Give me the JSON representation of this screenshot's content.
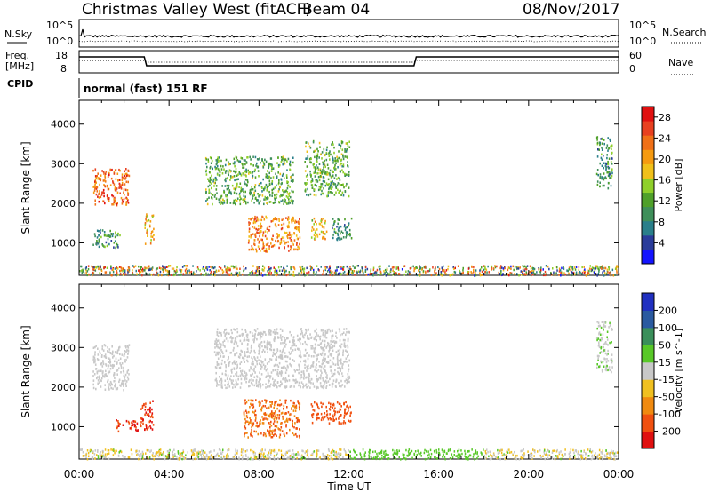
{
  "header": {
    "station": "Christmas Valley West (fitACF)",
    "beam": "Beam 04",
    "date": "08/Nov/2017"
  },
  "labels": {
    "nsky": "N.Sky",
    "nsearch": "N.Search",
    "freq_line1": "Freq.",
    "freq_line2": "[MHz]",
    "nave": "Nave",
    "cpid": "CPID",
    "cpid_value": "normal (fast) 151 RF",
    "noise_top_left": "10^5",
    "noise_bottom_left": "10^0",
    "noise_top_right": "10^5",
    "noise_bottom_right": "10^0",
    "freq_top": "18",
    "freq_bottom": "8",
    "nave_top": "60",
    "nave_bottom": "0"
  },
  "chart_data": [
    {
      "type": "heatmap",
      "panel": "power",
      "ylabel": "Slant Range [km]",
      "xlabel": "Time UT",
      "xticks": [
        "00:00",
        "04:00",
        "08:00",
        "12:00",
        "16:00",
        "20:00",
        "00:00"
      ],
      "yticks": [
        "1000",
        "2000",
        "3000",
        "4000"
      ],
      "ylim": [
        180,
        4600
      ],
      "xlim_hours": [
        0,
        24
      ],
      "colorbar": {
        "label": "Power [dB]",
        "ticks": [
          "4",
          "8",
          "12",
          "16",
          "20",
          "24",
          "28"
        ],
        "range": [
          0,
          30
        ],
        "colors": [
          "#1414ff",
          "#2a3c9a",
          "#2a7f8a",
          "#3f8f5a",
          "#4fa02a",
          "#8fcf2a",
          "#f0c01a",
          "#f59a10",
          "#f07018",
          "#e84020",
          "#e01010"
        ]
      },
      "regions": [
        {
          "t0": 0.6,
          "t1": 2.2,
          "r0": 1950,
          "r1": 2900,
          "value": 24
        },
        {
          "t0": 0.6,
          "t1": 1.8,
          "r0": 900,
          "r1": 1350,
          "value": 10
        },
        {
          "t0": 2.9,
          "t1": 3.3,
          "r0": 1000,
          "r1": 1750,
          "value": 20
        },
        {
          "t0": 5.6,
          "t1": 9.5,
          "r0": 2000,
          "r1": 3200,
          "value": 12
        },
        {
          "t0": 7.5,
          "t1": 9.8,
          "r0": 800,
          "r1": 1700,
          "value": 22
        },
        {
          "t0": 10.3,
          "t1": 11.0,
          "r0": 1100,
          "r1": 1650,
          "value": 18
        },
        {
          "t0": 11.2,
          "t1": 12.1,
          "r0": 1100,
          "r1": 1650,
          "value": 10
        },
        {
          "t0": 10.0,
          "t1": 12.0,
          "r0": 2200,
          "r1": 3600,
          "value": 12
        },
        {
          "t0": 23.0,
          "t1": 23.7,
          "r0": 2400,
          "r1": 3700,
          "value": 10
        }
      ]
    },
    {
      "type": "heatmap",
      "panel": "velocity",
      "ylabel": "Slant Range [km]",
      "xlabel": "Time UT",
      "xticks": [
        "00:00",
        "04:00",
        "08:00",
        "12:00",
        "16:00",
        "20:00",
        "00:00"
      ],
      "yticks": [
        "1000",
        "2000",
        "3000",
        "4000"
      ],
      "ylim": [
        180,
        4600
      ],
      "xlim_hours": [
        0,
        24
      ],
      "colorbar": {
        "label": "Velocity [m s^-1]",
        "ticks": [
          "200",
          "100",
          "50",
          "15",
          "-15",
          "-50",
          "-100",
          "-200"
        ],
        "colors": [
          "#2030c0",
          "#2a5aa0",
          "#3a8f5a",
          "#58c828",
          "#c8c8c8",
          "#f0c020",
          "#f08a10",
          "#f05010",
          "#e01010"
        ]
      },
      "regions": [
        {
          "t0": 0.6,
          "t1": 2.2,
          "r0": 1950,
          "r1": 3100,
          "value": 0
        },
        {
          "t0": 2.7,
          "t1": 3.3,
          "r0": 950,
          "r1": 1700,
          "value": -200
        },
        {
          "t0": 1.6,
          "t1": 2.6,
          "r0": 900,
          "r1": 1200,
          "value": -200
        },
        {
          "t0": 7.3,
          "t1": 9.8,
          "r0": 750,
          "r1": 1700,
          "value": -100
        },
        {
          "t0": 10.3,
          "t1": 12.1,
          "r0": 1100,
          "r1": 1650,
          "value": -150
        },
        {
          "t0": 6.0,
          "t1": 12.0,
          "r0": 2000,
          "r1": 3500,
          "value": 0
        },
        {
          "t0": 23.0,
          "t1": 23.7,
          "r0": 2400,
          "r1": 3700,
          "value": 10
        }
      ]
    }
  ]
}
